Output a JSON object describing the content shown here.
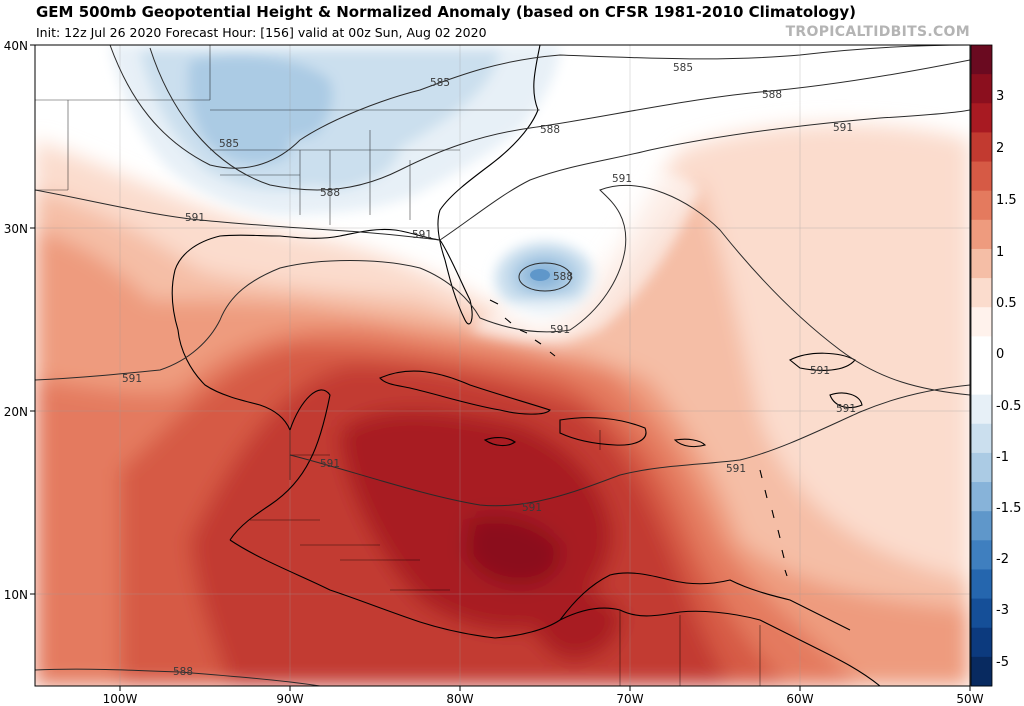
{
  "header": {
    "title": "GEM 500mb Geopotential Height & Normalized Anomaly (based on CFSR 1981-2010 Climatology)",
    "subtitle": "Init: 12z Jul 26 2020   Forecast Hour: [156]   valid at 00z Sun, Aug 02 2020",
    "brand": "TROPICALTIDBITS.COM"
  },
  "axes": {
    "lon_labels": [
      "100W",
      "90W",
      "80W",
      "70W",
      "60W",
      "50W"
    ],
    "lat_labels": [
      "40N",
      "30N",
      "20N",
      "10N"
    ]
  },
  "colorbar": {
    "labels": [
      "3",
      "2",
      "1.5",
      "1",
      "0.5",
      "0",
      "-0.5",
      "-1",
      "-1.5",
      "-2",
      "-3",
      "-5"
    ],
    "colors": [
      "#6a0a20",
      "#8b0f1e",
      "#a81a22",
      "#c23a30",
      "#d65a45",
      "#e47a5e",
      "#ee9b7e",
      "#f5bea6",
      "#fbdccd",
      "#fff2ec",
      "#ffffff",
      "#ffffff",
      "#e7f0f7",
      "#cbdfee",
      "#abcbe4",
      "#87b3d9",
      "#5f97ca",
      "#3f7fbf",
      "#2566ae",
      "#154f98",
      "#0c3a7e",
      "#082a60"
    ]
  },
  "contours": {
    "labels": [
      "585",
      "585",
      "585",
      "588",
      "588",
      "588",
      "591",
      "591",
      "591",
      "591",
      "591",
      "591",
      "591",
      "591",
      "591",
      "591",
      "588",
      "591",
      "588"
    ]
  }
}
